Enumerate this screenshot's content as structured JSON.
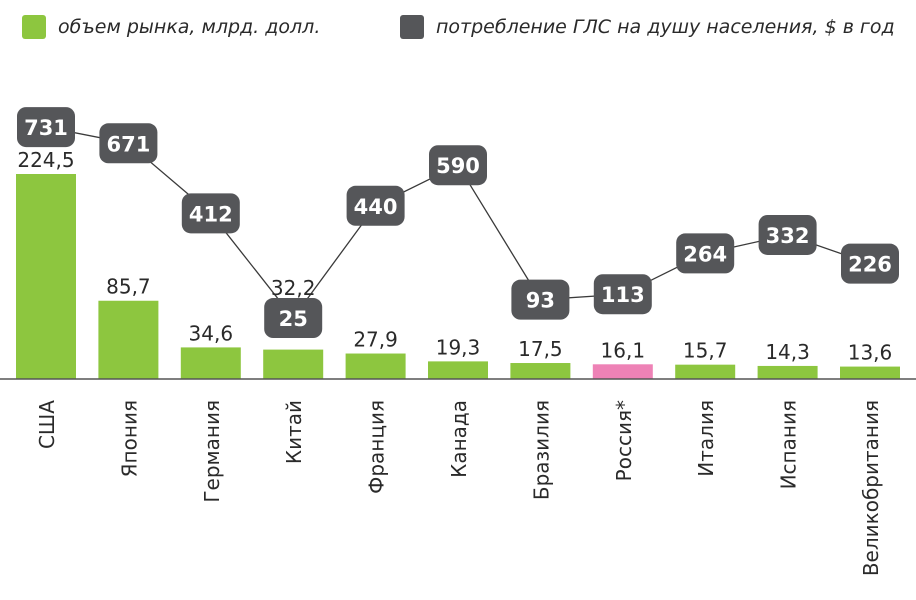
{
  "colors": {
    "market": "#8dc63f",
    "russia": "#ee82b6",
    "consumption_box": "#555659",
    "consumption_text": "#ffffff",
    "axis": "#555555",
    "label": "#2a2a2a"
  },
  "legend": {
    "market_label": "объем рынка, млрд. долл.",
    "consumption_label": "потребление ГЛС на душу населения, $ в год"
  },
  "chart_data": {
    "type": "bar",
    "categories": [
      "США",
      "Япония",
      "Германия",
      "Китай",
      "Франция",
      "Канада",
      "Бразилия",
      "Россия*",
      "Италия",
      "Испания",
      "Великобритания"
    ],
    "series": [
      {
        "name": "объем рынка, млрд. долл.",
        "type": "bar",
        "values": [
          224.5,
          85.7,
          34.6,
          32.2,
          27.9,
          19.3,
          17.5,
          16.1,
          15.7,
          14.3,
          13.6
        ],
        "labels": [
          "224,5",
          "85,7",
          "34,6",
          "32,2",
          "27,9",
          "19,3",
          "17,5",
          "16,1",
          "15,7",
          "14,3",
          "13,6"
        ]
      },
      {
        "name": "потребление ГЛС на душу населения, $ в год",
        "type": "line",
        "values": [
          731,
          671,
          412,
          25,
          440,
          590,
          93,
          113,
          264,
          332,
          226
        ],
        "labels": [
          "731",
          "671",
          "412",
          "25",
          "440",
          "590",
          "93",
          "113",
          "264",
          "332",
          "226"
        ]
      }
    ],
    "highlight_category": "Россия*",
    "title": "",
    "xlabel": "",
    "ylabel": ""
  }
}
